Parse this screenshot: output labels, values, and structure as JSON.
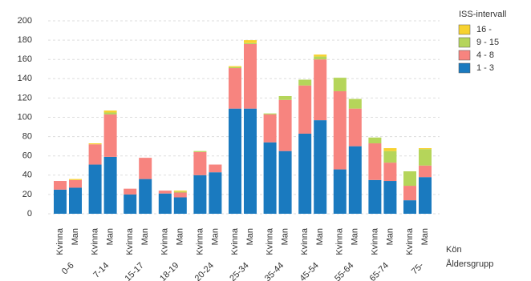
{
  "chart_data": {
    "type": "bar",
    "stacked": true,
    "categories": [
      "Kvinna",
      "Man",
      "Kvinna",
      "Man",
      "Kvinna",
      "Man",
      "Kvinna",
      "Man",
      "Kvinna",
      "Man",
      "Kvinna",
      "Man",
      "Kvinna",
      "Man",
      "Kvinna",
      "Man",
      "Kvinna",
      "Man",
      "Kvinna",
      "Man",
      "Kvinna",
      "Man"
    ],
    "groups": [
      "0-6",
      "7-14",
      "15-17",
      "18-19",
      "20-24",
      "25-34",
      "35-44",
      "45-54",
      "55-64",
      "65-74",
      "75-"
    ],
    "x_label": "Kön",
    "group_label": "Åldersgrupp",
    "legend_title": "ISS-intervall",
    "series": [
      {
        "name": "1 - 3",
        "color": "#1a7abf",
        "values": [
          25,
          27,
          51,
          59,
          20,
          36,
          21,
          17,
          40,
          43,
          109,
          109,
          74,
          65,
          83,
          97,
          46,
          70,
          35,
          34,
          14,
          38
        ]
      },
      {
        "name": "4 - 8",
        "color": "#f7847f",
        "values": [
          9,
          8,
          21,
          44,
          6,
          22,
          3,
          5,
          24,
          8,
          42,
          67,
          29,
          53,
          50,
          63,
          81,
          39,
          38,
          19,
          15,
          12
        ]
      },
      {
        "name": "9 - 15",
        "color": "#b5d55a",
        "values": [
          0,
          0,
          0,
          2,
          0,
          0,
          0,
          1,
          1,
          0,
          1,
          1,
          1,
          4,
          6,
          3,
          14,
          10,
          6,
          12,
          15,
          17
        ]
      },
      {
        "name": "16 -",
        "color": "#f7d230",
        "values": [
          0,
          1,
          1,
          2,
          0,
          0,
          0,
          1,
          0,
          0,
          1,
          3,
          0,
          0,
          0,
          2,
          0,
          0,
          0,
          3,
          0,
          1
        ]
      }
    ],
    "ylim": [
      0,
      200
    ],
    "yticks": [
      0,
      20,
      40,
      60,
      80,
      100,
      120,
      140,
      160,
      180,
      200
    ],
    "grid": true
  }
}
